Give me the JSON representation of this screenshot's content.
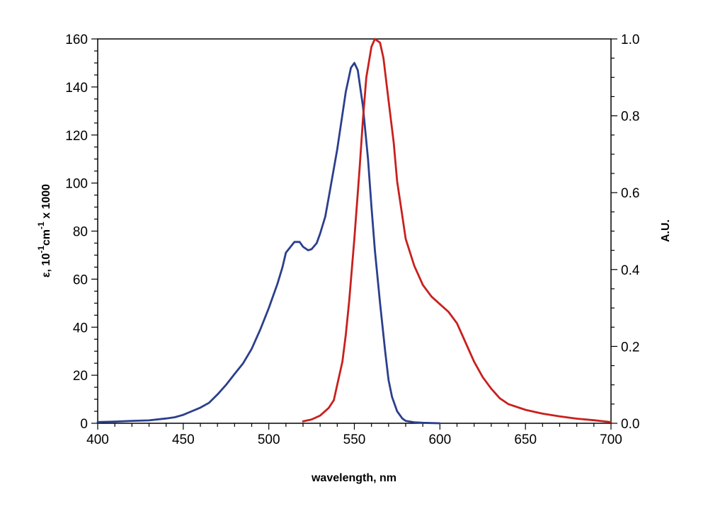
{
  "chart_data": {
    "type": "line",
    "title": "",
    "xlabel": "wavelength, nm",
    "ylabel_left": {
      "prefix": "ε, 10",
      "sup1": "-1",
      "mid": "cm",
      "sup2": "-1",
      "suffix": " x 1000"
    },
    "ylabel_right": "A.U.",
    "xlim": [
      400,
      700
    ],
    "ylim_left": [
      0,
      160
    ],
    "ylim_right": [
      0,
      1.0
    ],
    "x_ticks": [
      "400",
      "450",
      "500",
      "550",
      "600",
      "650",
      "700"
    ],
    "y_left_ticks": [
      "0",
      "20",
      "40",
      "60",
      "80",
      "100",
      "120",
      "140",
      "160"
    ],
    "y_right_ticks": [
      "0.0",
      "0.2",
      "0.4",
      "0.6",
      "0.8",
      "1.0"
    ],
    "grid": false,
    "series": [
      {
        "axis": "left",
        "color": "#2b3f8c",
        "x": [
          400,
          410,
          420,
          430,
          440,
          445,
          450,
          455,
          460,
          465,
          470,
          475,
          480,
          485,
          490,
          495,
          500,
          505,
          508,
          510,
          515,
          518,
          520,
          523,
          525,
          528,
          530,
          533,
          535,
          540,
          545,
          548,
          550,
          552,
          555,
          558,
          560,
          562,
          565,
          568,
          570,
          572,
          575,
          578,
          580,
          585,
          590,
          595,
          600
        ],
        "y": [
          0.5,
          0.7,
          1,
          1.2,
          2,
          2.5,
          3.5,
          5,
          6.5,
          8.5,
          12,
          16,
          20.5,
          25,
          31,
          39,
          48,
          58,
          65,
          71,
          75.5,
          75.5,
          73.5,
          72,
          72.5,
          75,
          79,
          86,
          94,
          114,
          138,
          148,
          150,
          147,
          132,
          110,
          90,
          72,
          50,
          30,
          18,
          11,
          5,
          2,
          1,
          0.4,
          0.2,
          0.1,
          0
        ]
      },
      {
        "axis": "right",
        "color": "#c8201d",
        "x": [
          520,
          525,
          530,
          535,
          538,
          540,
          543,
          545,
          547,
          550,
          553,
          555,
          557,
          560,
          562,
          565,
          567,
          570,
          573,
          575,
          578,
          580,
          585,
          590,
          595,
          600,
          605,
          610,
          615,
          620,
          625,
          630,
          635,
          640,
          650,
          660,
          670,
          680,
          690,
          700
        ],
        "y": [
          0.005,
          0.01,
          0.02,
          0.04,
          0.06,
          0.1,
          0.16,
          0.23,
          0.32,
          0.48,
          0.66,
          0.79,
          0.9,
          0.98,
          1.0,
          0.99,
          0.95,
          0.84,
          0.73,
          0.63,
          0.54,
          0.48,
          0.41,
          0.36,
          0.33,
          0.31,
          0.29,
          0.26,
          0.21,
          0.16,
          0.12,
          0.09,
          0.065,
          0.05,
          0.035,
          0.025,
          0.018,
          0.012,
          0.008,
          0.003
        ]
      }
    ]
  }
}
